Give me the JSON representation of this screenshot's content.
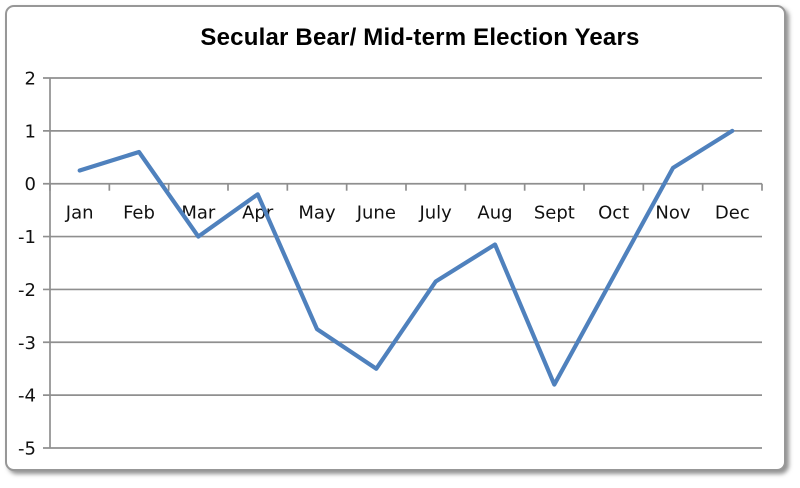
{
  "chart_data": {
    "type": "line",
    "title": "Secular Bear/ Mid-term Election Years",
    "categories": [
      "Jan",
      "Feb",
      "Mar",
      "Apr",
      "May",
      "June",
      "July",
      "Aug",
      "Sept",
      "Oct",
      "Nov",
      "Dec"
    ],
    "values": [
      0.25,
      0.6,
      -1.0,
      -0.2,
      -2.75,
      -3.5,
      -1.85,
      -1.15,
      -3.8,
      -1.75,
      0.3,
      1.0
    ],
    "xlabel": "",
    "ylabel": "",
    "ylim": [
      -5,
      2
    ],
    "yticks": [
      2,
      1,
      0,
      -1,
      -2,
      -3,
      -4,
      -5
    ],
    "ytick_labels": [
      "2",
      "1",
      "0",
      "-1",
      "-2",
      "-3",
      "-4",
      "-5"
    ],
    "grid": true,
    "legend": "none",
    "line_color": "#4F81BD",
    "grid_color": "#8f8f8f",
    "axis_color": "#8f8f8f",
    "text_color": "#111111"
  }
}
